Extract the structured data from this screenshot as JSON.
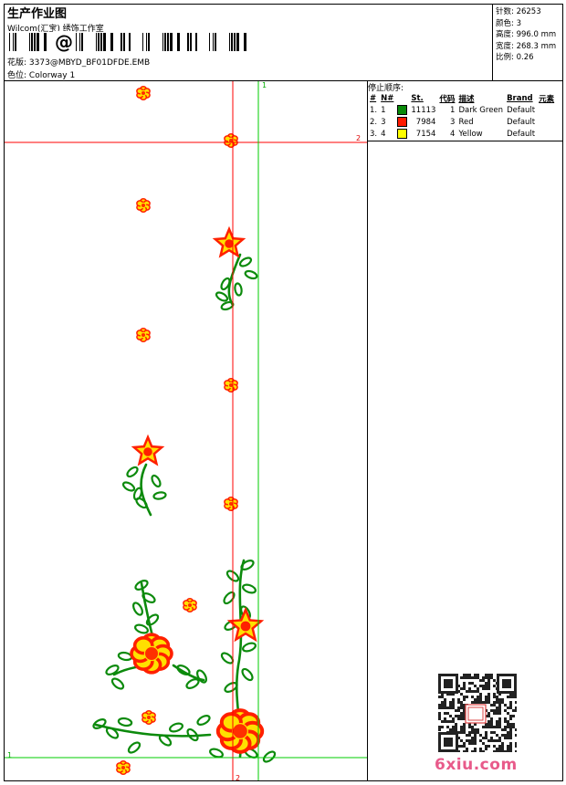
{
  "header": {
    "title": "生产作业图",
    "company": "Wilcom(汇宝) 绣饰工作室",
    "design_label": "花版:",
    "design_file": "3373@MBYD_BF01DFDE.EMB",
    "colorway_label": "色位:",
    "colorway": "Colorway 1",
    "barcode_symbol": "@"
  },
  "stats": [
    {
      "label": "针数:",
      "value": "26253"
    },
    {
      "label": "颜色:",
      "value": "3"
    },
    {
      "label": "高度:",
      "value": "996.0 mm"
    },
    {
      "label": "宽度:",
      "value": "268.3 mm"
    },
    {
      "label": "比例:",
      "value": "0.26"
    }
  ],
  "stop_sequence": {
    "title": "停止顺序:",
    "columns": {
      "num": "#",
      "needle": "N#",
      "stitches": "St.",
      "code": "代码",
      "desc": "描述",
      "brand": "Brand",
      "element": "元素"
    },
    "rows": [
      {
        "num": "1.",
        "needle": "1",
        "color": "#0a8a0a",
        "stitches": "11113",
        "code": "1",
        "desc": "Dark Green",
        "brand": "Default"
      },
      {
        "num": "2.",
        "needle": "3",
        "color": "#ff1a00",
        "stitches": "7984",
        "code": "3",
        "desc": "Red",
        "brand": "Default"
      },
      {
        "num": "3.",
        "needle": "4",
        "color": "#ffff00",
        "stitches": "7154",
        "code": "4",
        "desc": "Yellow",
        "brand": "Default"
      }
    ]
  },
  "guides": {
    "green_label_top": "1",
    "green_label_left": "1",
    "red_label_right": "2",
    "red_label_bottom": "2"
  },
  "watermark": "6xiu.com"
}
